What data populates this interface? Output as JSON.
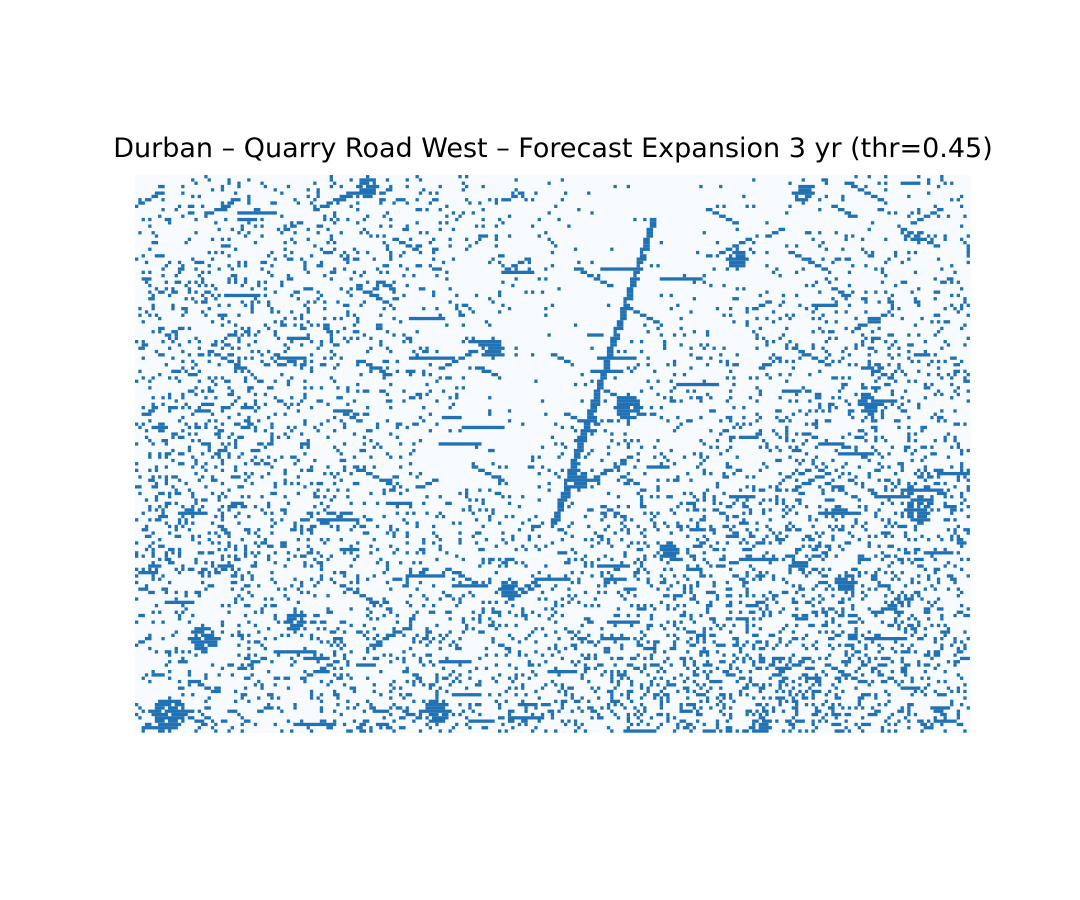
{
  "map": {
    "title": "Durban – Quarry Road West – Forecast Expansion 3 yr (thr=0.45)",
    "threshold": 0.45,
    "forecast_horizon_years": 3,
    "colors": {
      "background": "#f7fbff",
      "expansion": "#2171b5"
    },
    "axes_visible": false,
    "colorbar_visible": false
  }
}
